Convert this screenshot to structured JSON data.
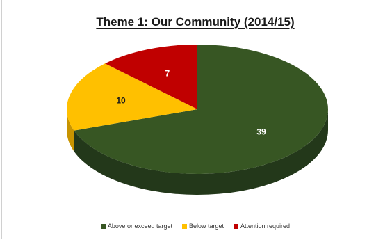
{
  "chart_data": {
    "type": "pie",
    "title": "Theme 1: Our Community (2014/15)",
    "categories": [
      "Above or exceed target",
      "Below target",
      "Attention required"
    ],
    "values": [
      39,
      10,
      7
    ],
    "colors": [
      "#375623",
      "#FFC000",
      "#C00000"
    ],
    "side_colors": [
      "#23381a",
      "#c89400",
      "#8a0000"
    ],
    "label_colors": [
      "#ffffff",
      "#1a1a1a",
      "#ffffff"
    ],
    "legend_position": "bottom",
    "style": "3d-pie"
  }
}
